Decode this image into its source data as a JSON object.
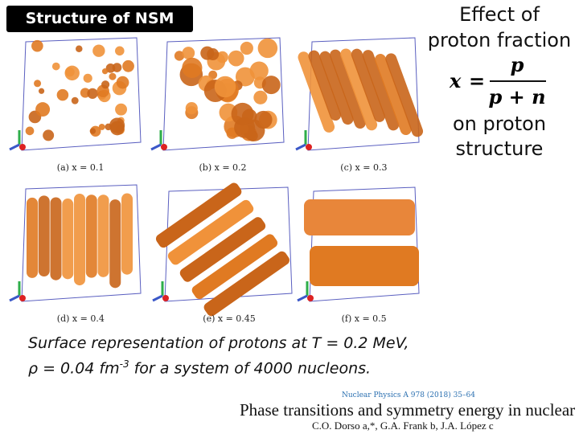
{
  "header": {
    "title": "Structure of NSM"
  },
  "side_note": {
    "line1": "Effect of",
    "line2": "proton fraction",
    "formula": {
      "lhs": "x",
      "eq": "=",
      "numerator": "p",
      "denominator": "p + n"
    },
    "line3": "on proton",
    "line4": "structure"
  },
  "panels": [
    {
      "label": "(a)  x = 0.1"
    },
    {
      "label": "(b)  x = 0.2"
    },
    {
      "label": "(c)  x = 0.3"
    },
    {
      "label": "(d)  x = 0.4"
    },
    {
      "label": "(e)  x = 0.45"
    },
    {
      "label": "(f)  x = 0.5"
    }
  ],
  "caption": {
    "line1": "Surface representation of protons at T = 0.2 MeV,",
    "line2_start": "ρ = 0.04 fm",
    "line2_sup": "-3",
    "line2_end": " for a system of 4000 nucleons."
  },
  "reference": {
    "journal": "Nuclear Physics A 978 (2018) 35–64",
    "title": "Phase transitions and symmetry energy in nuclear pasta",
    "authors": "C.O. Dorso a,*, G.A. Frank b, J.A. López c"
  }
}
